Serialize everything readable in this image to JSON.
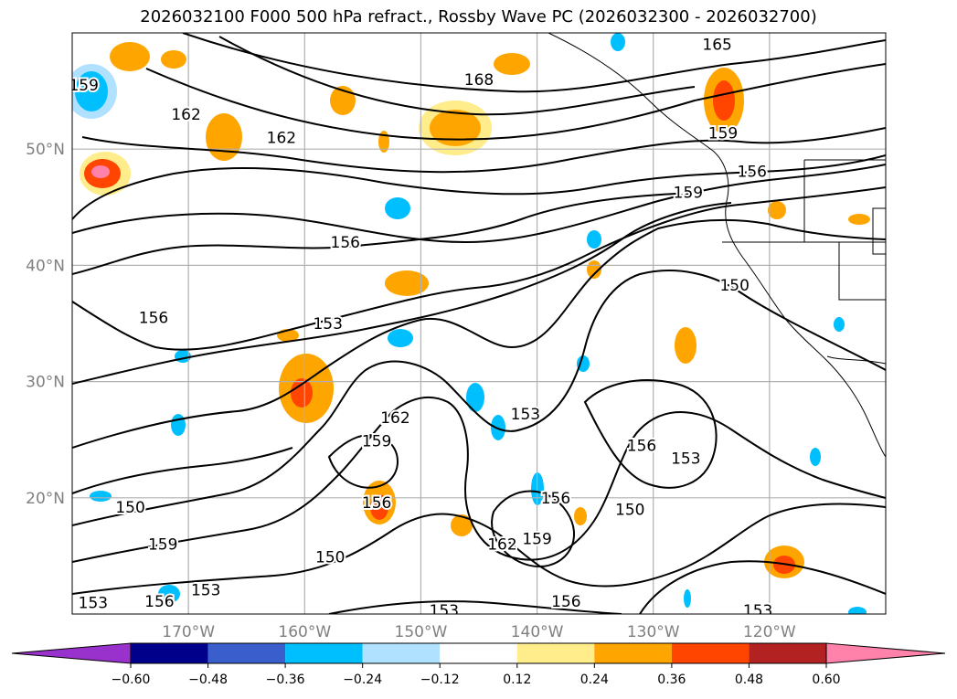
{
  "title": "2026032100 F000 500 hPa refract., Rossby Wave PC (2026032300 - 2026032700)",
  "map": {
    "lon_range": [
      -180,
      -110
    ],
    "lat_range": [
      10,
      60
    ],
    "lat_ticks": [
      {
        "value": 50,
        "label": "50°N"
      },
      {
        "value": 40,
        "label": "40°N"
      },
      {
        "value": 30,
        "label": "30°N"
      },
      {
        "value": 20,
        "label": "20°N"
      }
    ],
    "lon_ticks": [
      {
        "value": -170,
        "label": "170°W"
      },
      {
        "value": -160,
        "label": "160°W"
      },
      {
        "value": -150,
        "label": "150°W"
      },
      {
        "value": -140,
        "label": "140°W"
      },
      {
        "value": -130,
        "label": "130°W"
      },
      {
        "value": -120,
        "label": "120°W"
      }
    ],
    "gridlines": true,
    "contour_labels": [
      {
        "text": "165",
        "lon": -124.5,
        "lat": 59.0
      },
      {
        "text": "168",
        "lon": -145.0,
        "lat": 56.0
      },
      {
        "text": "162",
        "lon": -170.2,
        "lat": 53.0
      },
      {
        "text": "162",
        "lon": -162.0,
        "lat": 51.0
      },
      {
        "text": "159",
        "lon": -179.0,
        "lat": 55.5
      },
      {
        "text": "159",
        "lon": -124.0,
        "lat": 51.4
      },
      {
        "text": "156",
        "lon": -121.5,
        "lat": 48.1
      },
      {
        "text": "159",
        "lon": -127.0,
        "lat": 46.3
      },
      {
        "text": "156",
        "lon": -156.5,
        "lat": 42.0
      },
      {
        "text": "150",
        "lon": -123.0,
        "lat": 38.3
      },
      {
        "text": "156",
        "lon": -173.0,
        "lat": 35.5
      },
      {
        "text": "153",
        "lon": -158.0,
        "lat": 35.0
      },
      {
        "text": "162",
        "lon": -152.2,
        "lat": 26.9
      },
      {
        "text": "159",
        "lon": -153.8,
        "lat": 24.9
      },
      {
        "text": "153",
        "lon": -141.0,
        "lat": 27.2
      },
      {
        "text": "156",
        "lon": -131.0,
        "lat": 24.5
      },
      {
        "text": "153",
        "lon": -127.2,
        "lat": 23.4
      },
      {
        "text": "150",
        "lon": -175.0,
        "lat": 19.2
      },
      {
        "text": "156",
        "lon": -153.8,
        "lat": 19.6
      },
      {
        "text": "156",
        "lon": -138.4,
        "lat": 20.0
      },
      {
        "text": "150",
        "lon": -132.0,
        "lat": 19.0
      },
      {
        "text": "162",
        "lon": -143.0,
        "lat": 16.0
      },
      {
        "text": "159",
        "lon": -140.0,
        "lat": 16.5
      },
      {
        "text": "159",
        "lon": -172.2,
        "lat": 16.0
      },
      {
        "text": "150",
        "lon": -157.8,
        "lat": 14.9
      },
      {
        "text": "153",
        "lon": -168.5,
        "lat": 12.1
      },
      {
        "text": "156",
        "lon": -172.5,
        "lat": 11.1
      },
      {
        "text": "153",
        "lon": -178.2,
        "lat": 11.0
      },
      {
        "text": "153",
        "lon": -148.0,
        "lat": 10.3
      },
      {
        "text": "156",
        "lon": -137.5,
        "lat": 11.1
      },
      {
        "text": "153",
        "lon": -121.0,
        "lat": 10.3
      }
    ]
  },
  "colorbar": {
    "extend": "both",
    "ticks": [
      "−0.60",
      "−0.48",
      "−0.36",
      "−0.24",
      "−0.12",
      "0.12",
      "0.24",
      "0.36",
      "0.48",
      "0.60"
    ],
    "colors": [
      "#9932cc",
      "#00008b",
      "#3a5fcd",
      "#00bfff",
      "#b0e2ff",
      "#ffffff",
      "#ffec8b",
      "#ffa500",
      "#ff4500",
      "#b22222",
      "#ff82ab"
    ]
  }
}
